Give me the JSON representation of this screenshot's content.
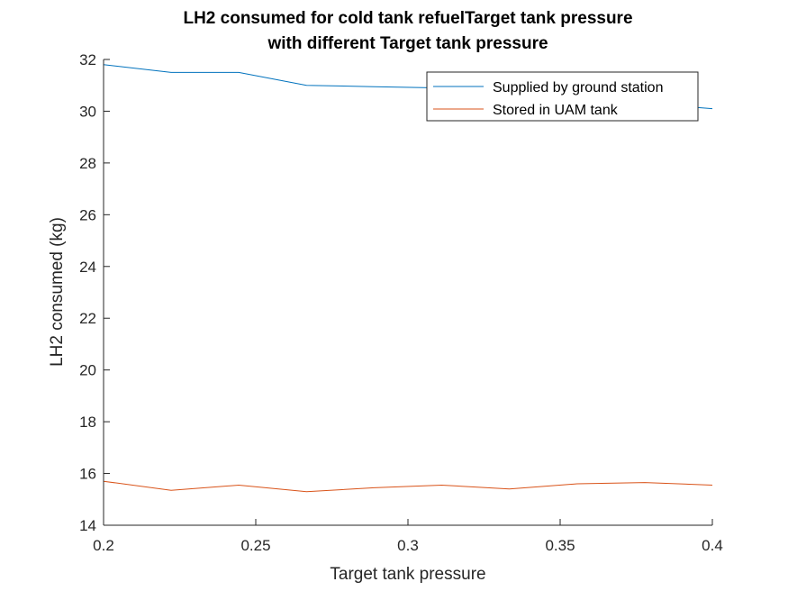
{
  "chart_data": {
    "type": "line",
    "title_line1": "LH2 consumed for cold tank refuelTarget tank pressure",
    "title_line2": "with different Target tank pressure",
    "xlabel": "Target tank pressure",
    "ylabel": "LH2 consumed (kg)",
    "xlim": [
      0.2,
      0.4
    ],
    "ylim": [
      14,
      32
    ],
    "xticks": [
      0.2,
      0.25,
      0.3,
      0.35,
      0.4
    ],
    "xtick_labels": [
      "0.2",
      "0.25",
      "0.3",
      "0.35",
      "0.4"
    ],
    "yticks": [
      14,
      16,
      18,
      20,
      22,
      24,
      26,
      28,
      30,
      32
    ],
    "ytick_labels": [
      "14",
      "16",
      "18",
      "20",
      "22",
      "24",
      "26",
      "28",
      "30",
      "32"
    ],
    "grid": false,
    "legend_position": "top-right",
    "x": [
      0.2,
      0.2222,
      0.2444,
      0.2667,
      0.2889,
      0.3111,
      0.3333,
      0.3556,
      0.3778,
      0.4
    ],
    "series": [
      {
        "name": "Supplied by ground station",
        "color": "#0072BD",
        "values": [
          31.8,
          31.5,
          31.5,
          31.0,
          30.95,
          30.9,
          30.7,
          30.5,
          30.3,
          30.1
        ]
      },
      {
        "name": "Stored in UAM tank",
        "color": "#D95319",
        "values": [
          15.7,
          15.35,
          15.55,
          15.3,
          15.45,
          15.55,
          15.4,
          15.6,
          15.65,
          15.55
        ]
      }
    ]
  }
}
